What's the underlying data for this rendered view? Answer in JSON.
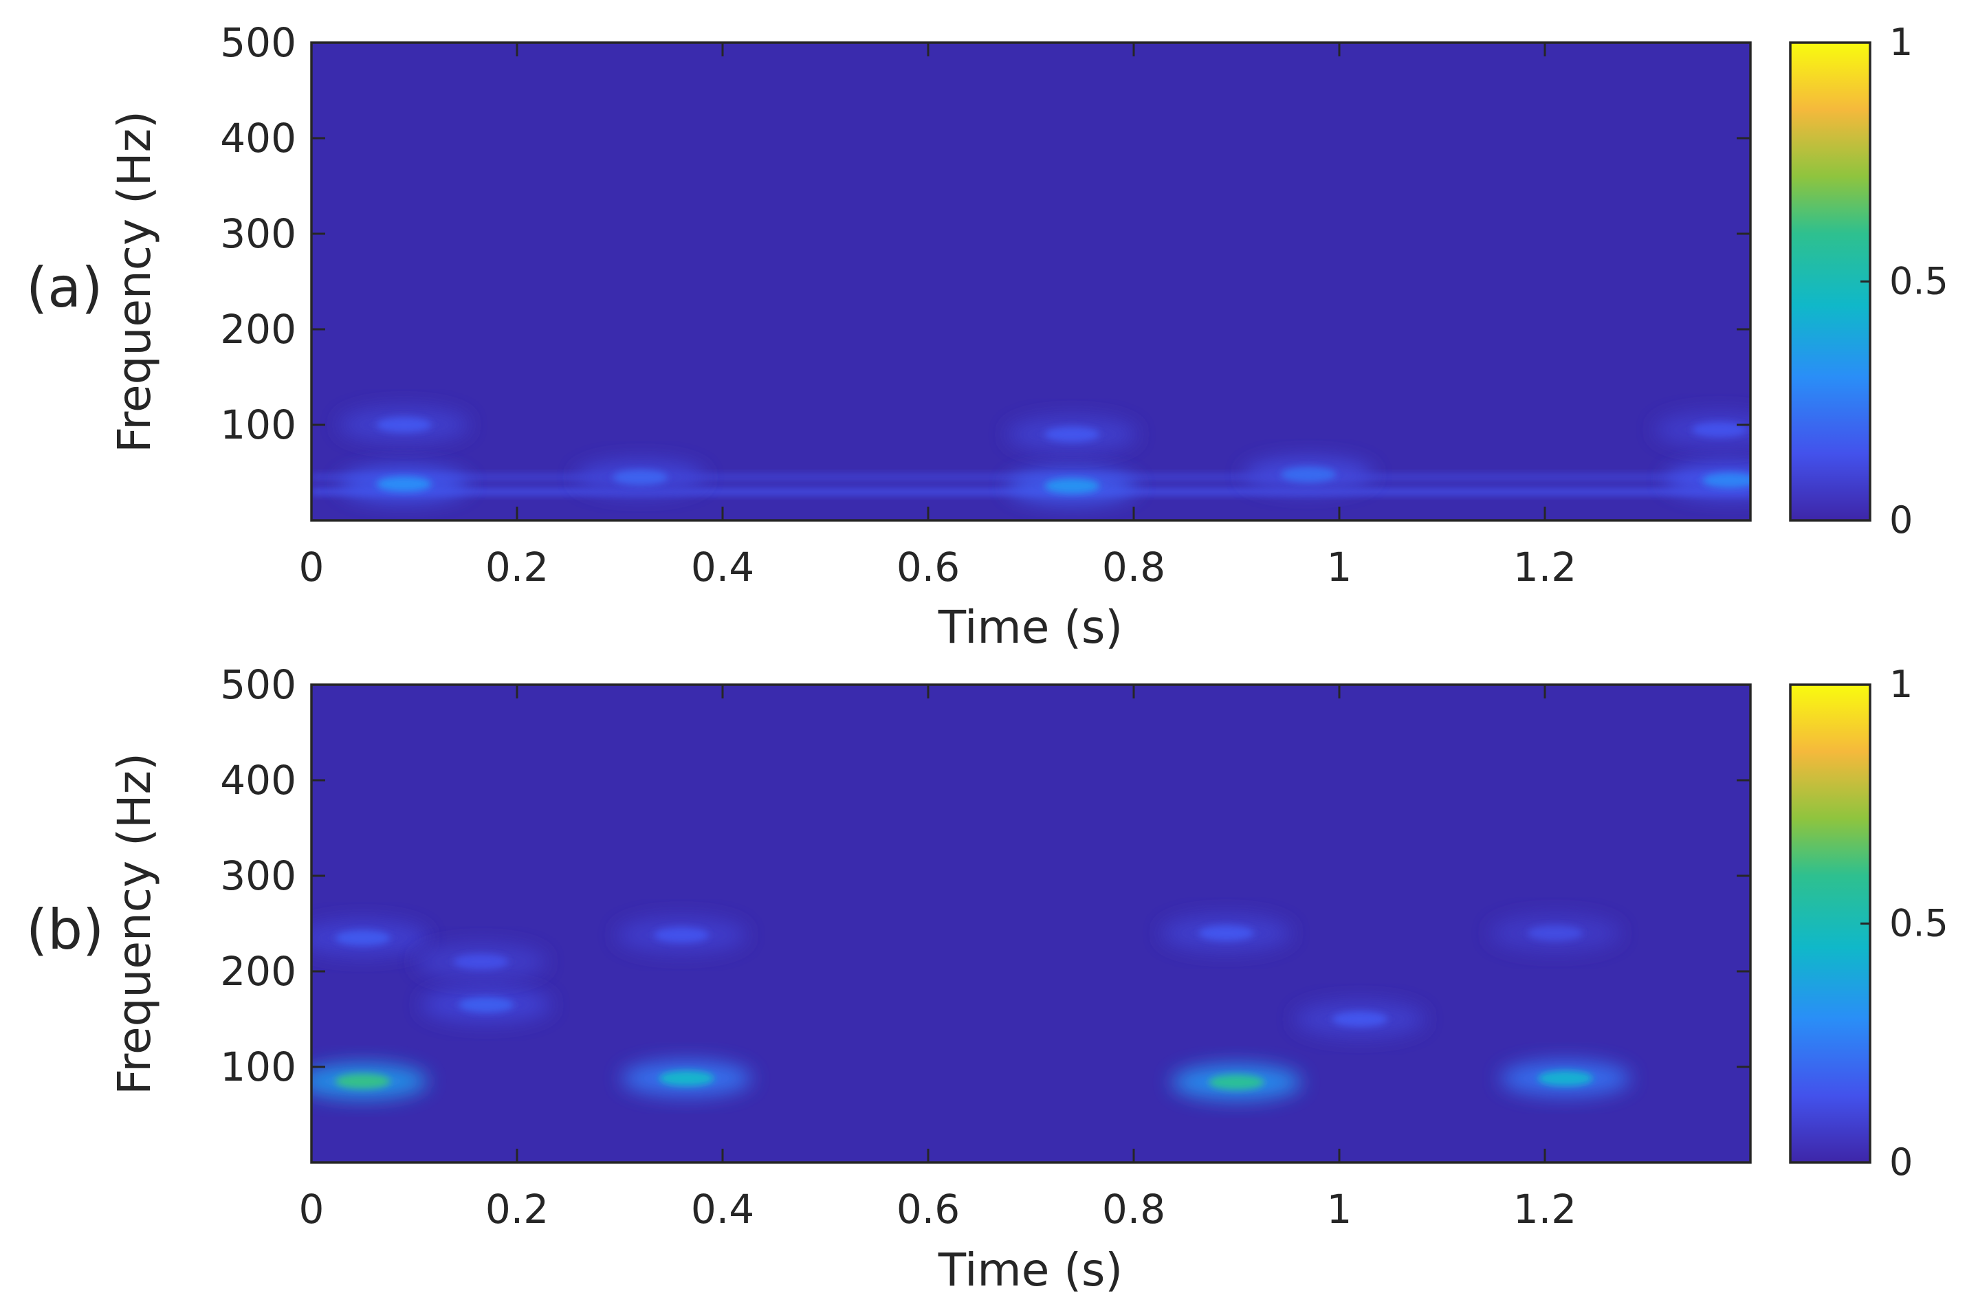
{
  "colors": {
    "background_base": "#3a2bad",
    "colormap": [
      "#3e26a8",
      "#4352ec",
      "#2a8ef7",
      "#10b8c9",
      "#2ec08f",
      "#8fc43e",
      "#f5b93c",
      "#f9fb0e"
    ]
  },
  "chart_data": [
    {
      "panel_label": "(a)",
      "type": "heatmap",
      "xlabel": "Time (s)",
      "ylabel": "Frequency (Hz)",
      "xlim": [
        0,
        1.4
      ],
      "ylim": [
        0,
        500
      ],
      "xticks": [
        0,
        0.2,
        0.4,
        0.6,
        0.8,
        1,
        1.2
      ],
      "xtick_labels": [
        "0",
        "0.2",
        "0.4",
        "0.6",
        "0.8",
        "1",
        "1.2"
      ],
      "yticks": [
        100,
        200,
        300,
        400,
        500
      ],
      "ytick_labels": [
        "100",
        "200",
        "300",
        "400",
        "500"
      ],
      "colorbar": {
        "limits": [
          0,
          1
        ],
        "ticks": [
          0,
          0.5,
          1
        ],
        "tick_labels": [
          "0",
          "0.5",
          "1"
        ]
      },
      "grid": false,
      "bands": [
        {
          "t_start": 0.0,
          "t_end": 1.4,
          "f": 30,
          "intensity": 0.12
        },
        {
          "t_start": 0.0,
          "t_end": 1.4,
          "f": 45,
          "intensity": 0.08
        }
      ],
      "hotspots": [
        {
          "t": 0.09,
          "f": 38,
          "intensity": 0.28
        },
        {
          "t": 0.32,
          "f": 45,
          "intensity": 0.18
        },
        {
          "t": 0.74,
          "f": 36,
          "intensity": 0.3
        },
        {
          "t": 0.97,
          "f": 48,
          "intensity": 0.2
        },
        {
          "t": 1.38,
          "f": 42,
          "intensity": 0.26
        },
        {
          "t": 0.09,
          "f": 100,
          "intensity": 0.15
        },
        {
          "t": 0.74,
          "f": 90,
          "intensity": 0.15
        },
        {
          "t": 1.37,
          "f": 95,
          "intensity": 0.14
        }
      ]
    },
    {
      "panel_label": "(b)",
      "type": "heatmap",
      "xlabel": "Time (s)",
      "ylabel": "Frequency (Hz)",
      "xlim": [
        0,
        1.4
      ],
      "ylim": [
        0,
        500
      ],
      "xticks": [
        0,
        0.2,
        0.4,
        0.6,
        0.8,
        1,
        1.2
      ],
      "xtick_labels": [
        "0",
        "0.2",
        "0.4",
        "0.6",
        "0.8",
        "1",
        "1.2"
      ],
      "yticks": [
        100,
        200,
        300,
        400,
        500
      ],
      "ytick_labels": [
        "100",
        "200",
        "300",
        "400",
        "500"
      ],
      "colorbar": {
        "limits": [
          0,
          1
        ],
        "ticks": [
          0,
          0.5,
          1
        ],
        "tick_labels": [
          "0",
          "0.5",
          "1"
        ]
      },
      "grid": false,
      "bands": [],
      "hotspots": [
        {
          "t": 0.05,
          "f": 85,
          "intensity": 0.58
        },
        {
          "t": 0.365,
          "f": 88,
          "intensity": 0.42
        },
        {
          "t": 0.9,
          "f": 84,
          "intensity": 0.55
        },
        {
          "t": 1.22,
          "f": 88,
          "intensity": 0.4
        },
        {
          "t": 0.05,
          "f": 235,
          "intensity": 0.16
        },
        {
          "t": 0.36,
          "f": 238,
          "intensity": 0.14
        },
        {
          "t": 0.89,
          "f": 240,
          "intensity": 0.15
        },
        {
          "t": 1.21,
          "f": 240,
          "intensity": 0.12
        },
        {
          "t": 0.17,
          "f": 165,
          "intensity": 0.17
        },
        {
          "t": 0.165,
          "f": 210,
          "intensity": 0.13
        },
        {
          "t": 1.02,
          "f": 150,
          "intensity": 0.15
        }
      ]
    }
  ]
}
